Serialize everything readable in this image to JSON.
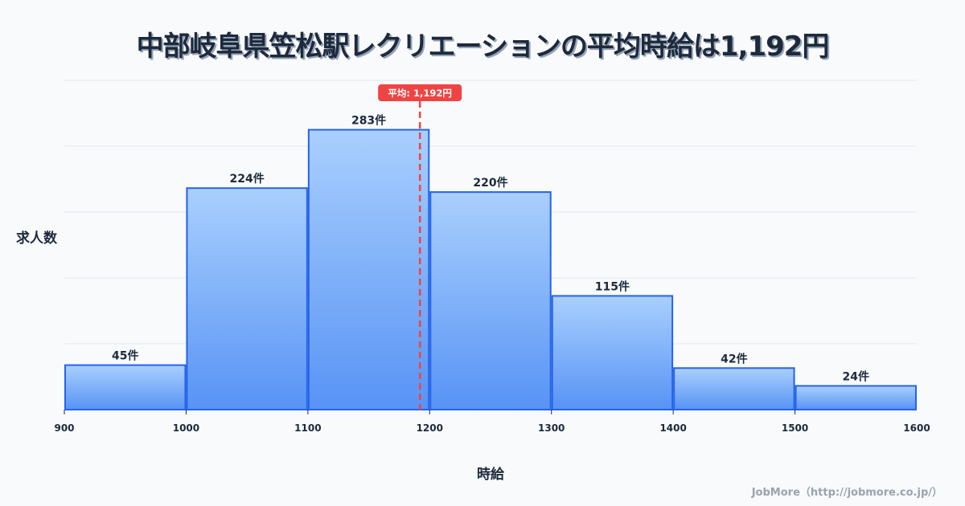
{
  "title": "中部岐阜県笠松駅レクリエーションの平均時給は1,192円",
  "chart_data": {
    "type": "bar",
    "subtype": "histogram",
    "title": "中部岐阜県笠松駅レクリエーションの平均時給は1,192円",
    "xlabel": "時給",
    "ylabel": "求人数",
    "bins": [
      [
        900,
        1000
      ],
      [
        1000,
        1100
      ],
      [
        1100,
        1200
      ],
      [
        1200,
        1300
      ],
      [
        1300,
        1400
      ],
      [
        1400,
        1500
      ],
      [
        1500,
        1600
      ]
    ],
    "categories": [
      "900-1000",
      "1000-1100",
      "1100-1200",
      "1200-1300",
      "1300-1400",
      "1400-1500",
      "1500-1600"
    ],
    "values": [
      45,
      224,
      283,
      220,
      115,
      42,
      24
    ],
    "value_labels": [
      "45件",
      "224件",
      "283件",
      "220件",
      "115件",
      "42件",
      "24件"
    ],
    "x_ticks": [
      "900",
      "1000",
      "1100",
      "1200",
      "1300",
      "1400",
      "1500",
      "1600"
    ],
    "xlim": [
      900,
      1600
    ],
    "ylim": [
      0,
      333
    ],
    "grid": true,
    "y_tick_labels_visible": false,
    "mean_line": {
      "value": 1192,
      "label": "平均: 1,192円",
      "color": "#ef4444"
    },
    "colors": {
      "bar_top": "#a5cdfd",
      "bar_bottom": "#4f8ef5",
      "bar_border": "#2563eb",
      "grid": "#e2e8f0"
    }
  },
  "axis": {
    "x_label": "時給",
    "y_label": "求人数"
  },
  "watermark": "JobMore（http://jobmore.co.jp/）"
}
